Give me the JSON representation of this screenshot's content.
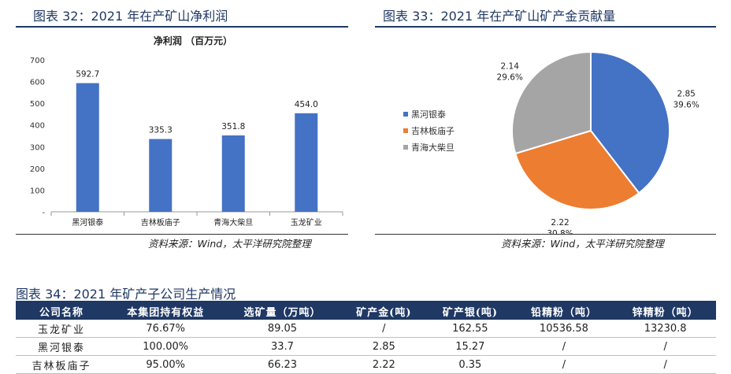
{
  "figure32": {
    "title": "图表 32：2021 年在产矿山净利润",
    "source": "资料来源：Wind，太平洋研究院整理"
  },
  "figure33": {
    "title": "图表 33：2021 年在产矿山矿产金贡献量",
    "source": "资料来源：Wind，太平洋研究院整理"
  },
  "figure34": {
    "title": "图表 34：2021 年矿产子公司生产情况",
    "headers": [
      "公司名称",
      "本集团持有权益",
      "选矿量（万吨）",
      "矿产金(吨)",
      "矿产银(吨)",
      "铅精粉（吨）",
      "锌精粉（吨）"
    ],
    "rows": [
      [
        "玉龙矿业",
        "76.67%",
        "89.05",
        "/",
        "162.55",
        "10536.58",
        "13230.8"
      ],
      [
        "黑河银泰",
        "100.00%",
        "33.7",
        "2.85",
        "15.27",
        "/",
        "/"
      ],
      [
        "吉林板庙子",
        "95.00%",
        "66.23",
        "2.22",
        "0.35",
        "/",
        "/"
      ]
    ]
  },
  "chart_data": [
    {
      "type": "bar",
      "title": "净利润 （百万元）",
      "categories": [
        "黑河银泰",
        "吉林板庙子",
        "青海大柴旦",
        "玉龙矿业"
      ],
      "values": [
        592.7,
        335.3,
        351.8,
        454.0
      ],
      "value_labels": [
        "592.7",
        "335.3",
        "351.8",
        "454.0"
      ],
      "ylim": [
        0,
        700
      ],
      "yticks": [
        0,
        100,
        200,
        300,
        400,
        500,
        600,
        700
      ],
      "ytick_labels": [
        "-",
        "100",
        "200",
        "300",
        "400",
        "500",
        "600",
        "700"
      ],
      "grid": false,
      "color": "#4472c4"
    },
    {
      "type": "pie",
      "categories": [
        "黑河银泰",
        "吉林板庙子",
        "青海大柴旦"
      ],
      "values": [
        2.85,
        2.22,
        2.14
      ],
      "value_labels": [
        "2.85",
        "2.22",
        "2.14"
      ],
      "percent_labels": [
        "39.6%",
        "30.8%",
        "29.6%"
      ],
      "colors": [
        "#4472c4",
        "#ed7d31",
        "#a5a5a5"
      ],
      "legend_position": "left"
    }
  ]
}
